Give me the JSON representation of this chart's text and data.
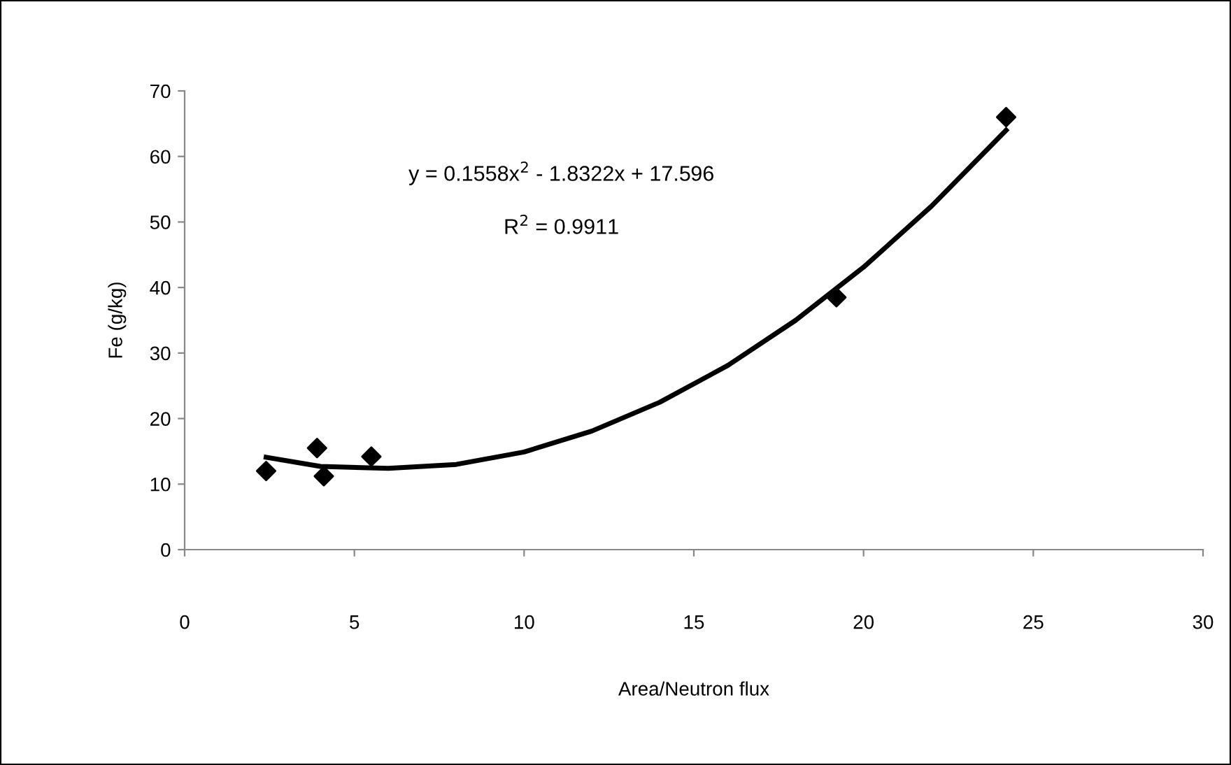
{
  "chart_data": {
    "type": "scatter",
    "xlabel": "Area/Neutron flux",
    "ylabel": "Fe (g/kg)",
    "xlim": [
      0,
      30
    ],
    "xticks": [
      0,
      5,
      10,
      15,
      20,
      25,
      30
    ],
    "ylim": [
      0,
      70
    ],
    "yticks": [
      0,
      10,
      20,
      30,
      40,
      50,
      60,
      70
    ],
    "grid": false,
    "legend": false,
    "annotations": [
      "y = 0.1558x$^{2}$ - 1.8322x + 17.596",
      "R$^{2}$ = 0.9911"
    ],
    "series": [
      {
        "color": "#000000",
        "marker": "diamond",
        "x": [
          2.4,
          3.9,
          4.1,
          5.5,
          19.2,
          24.2
        ],
        "values": [
          12,
          15.5,
          11.2,
          14.2,
          38.5,
          66
        ]
      },
      {
        "type": "line",
        "color": "#000000",
        "line_style": "solid",
        "x": [
          2.4,
          4,
          6,
          8,
          10,
          12,
          14,
          16,
          18,
          20,
          22,
          24.2
        ],
        "values": [
          14.1,
          12.7,
          12.4,
          13,
          14.9,
          18.1,
          22.5,
          28.1,
          35,
          43.1,
          52.4,
          64
        ]
      }
    ]
  }
}
